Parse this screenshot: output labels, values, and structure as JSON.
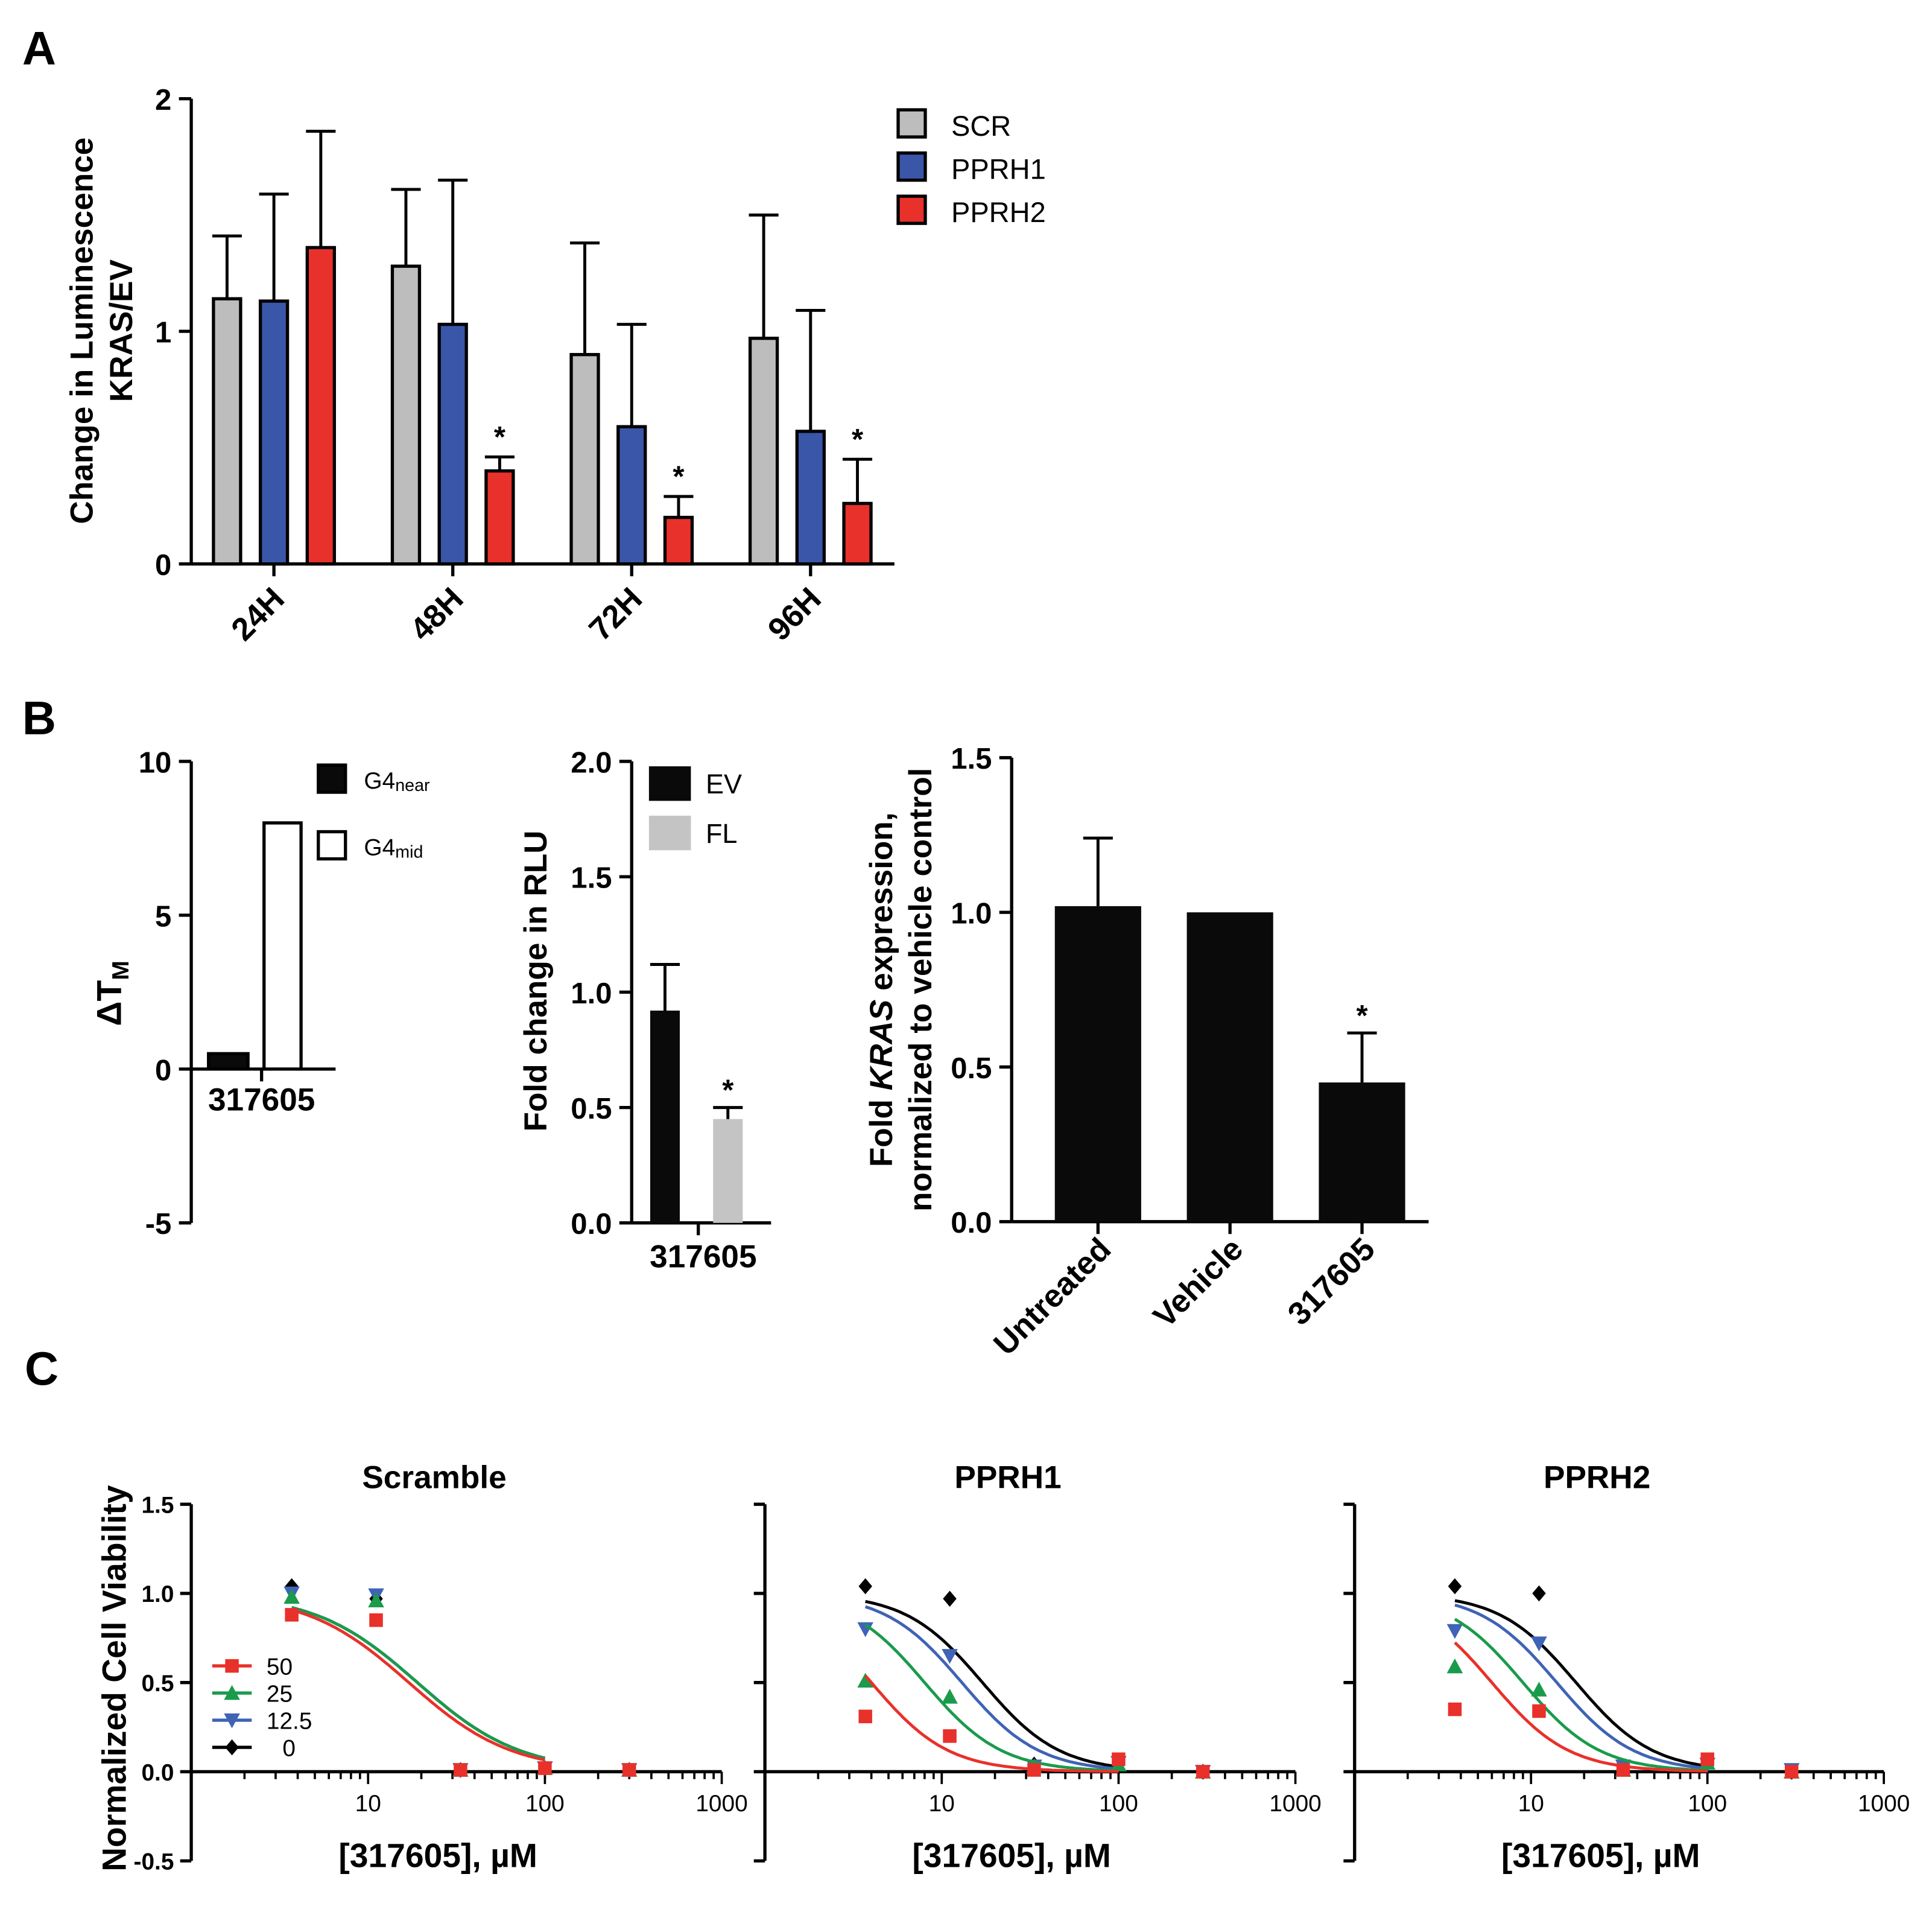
{
  "panels": {
    "a": "A",
    "b": "B",
    "c": "C"
  },
  "colors": {
    "scr": "#bdbdbd",
    "pprh1": "#3a56a8",
    "pprh2": "#e8312a",
    "black": "#0a0a0a",
    "fl": "#c4c4c4",
    "c50": "#e8312a",
    "c25": "#1a9b4b",
    "c12_5": "#3f63b5",
    "c0": "#000000"
  },
  "chart_data": [
    {
      "id": "A",
      "type": "bar",
      "ylabel_line1": "Change in Luminescence",
      "ylabel_line2": "KRAS/EV",
      "ylim": [
        0,
        2
      ],
      "yticks": [
        "0",
        "1",
        "2"
      ],
      "categories": [
        "24H",
        "48H",
        "72H",
        "96H"
      ],
      "series": [
        {
          "name": "SCR",
          "values": [
            1.14,
            1.28,
            0.9,
            0.97
          ],
          "errors": [
            0.27,
            0.33,
            0.48,
            0.53
          ],
          "sig": [
            "",
            "",
            "",
            ""
          ]
        },
        {
          "name": "PPRH1",
          "values": [
            1.13,
            1.03,
            0.59,
            0.57
          ],
          "errors": [
            0.46,
            0.62,
            0.44,
            0.52
          ],
          "sig": [
            "",
            "",
            "",
            ""
          ]
        },
        {
          "name": "PPRH2",
          "values": [
            1.36,
            0.4,
            0.2,
            0.26
          ],
          "errors": [
            0.5,
            0.06,
            0.09,
            0.19
          ],
          "sig": [
            "",
            "*",
            "*",
            "*"
          ]
        }
      ]
    },
    {
      "id": "B1",
      "type": "bar",
      "ylabel": "ΔT",
      "ylabel_sub": "M",
      "ylim": [
        -5,
        10
      ],
      "yticks": [
        "-5",
        "0",
        "5",
        "10"
      ],
      "categories": [
        "317605"
      ],
      "series": [
        {
          "name": "G4",
          "sub": "near",
          "values": [
            0.5
          ]
        },
        {
          "name": "G4",
          "sub": "mid",
          "values": [
            8.0
          ]
        }
      ]
    },
    {
      "id": "B2",
      "type": "bar",
      "ylabel": "Fold change in RLU",
      "ylim": [
        0,
        2
      ],
      "yticks": [
        "0.0",
        "0.5",
        "1.0",
        "1.5",
        "2.0"
      ],
      "categories": [
        "317605"
      ],
      "series": [
        {
          "name": "EV",
          "values": [
            0.92
          ],
          "errors": [
            0.2
          ],
          "sig": [
            ""
          ]
        },
        {
          "name": "FL",
          "values": [
            0.45
          ],
          "errors": [
            0.05
          ],
          "sig": [
            "*"
          ]
        }
      ]
    },
    {
      "id": "B3",
      "type": "bar",
      "ylabel_pre": "Fold ",
      "ylabel_italic": "KRAS",
      "ylabel_post": " expression,",
      "ylabel_line2": "normalized to vehicle control",
      "ylim": [
        0,
        1.5
      ],
      "yticks": [
        "0.0",
        "0.5",
        "1.0",
        "1.5"
      ],
      "categories": [
        "Untreated",
        "Vehicle",
        "317605"
      ],
      "values": [
        1.02,
        1.0,
        0.45
      ],
      "errors": [
        0.22,
        0,
        0.16
      ],
      "sig": [
        "",
        "",
        "*"
      ]
    },
    {
      "id": "C",
      "type": "scatter",
      "ylabel": "Normalized Cell Viability",
      "xlabel": "[317605], µM",
      "xscale": "log",
      "xlim": [
        1,
        1000
      ],
      "ylim": [
        -0.5,
        1.5
      ],
      "yticks": [
        "-0.5",
        "0.0",
        "0.5",
        "1.0",
        "1.5"
      ],
      "xticks": [
        "10",
        "100",
        "1000"
      ],
      "legend": [
        "50",
        "25",
        "12.5",
        "0"
      ],
      "x": [
        3.7,
        11.1,
        33.3,
        100,
        300
      ],
      "subplots": [
        {
          "title": "Scramble",
          "series": [
            {
              "name": "50",
              "y": [
                0.88,
                0.85,
                0.01,
                0.02,
                0.01
              ],
              "ic50": 17,
              "hill": 1.5
            },
            {
              "name": "25",
              "y": [
                0.98,
                0.96,
                0.01,
                0.02,
                0.01
              ],
              "ic50": 19,
              "hill": 1.5
            },
            {
              "name": "12.5",
              "y": [
                1.0,
                0.99,
                0.01,
                0.02,
                0.01
              ],
              "ic50": 19,
              "hill": 1.5
            },
            {
              "name": "0",
              "y": [
                1.04,
                0.97,
                0.01,
                0.02,
                0.01
              ],
              "ic50": 19,
              "hill": 1.5
            }
          ]
        },
        {
          "title": "PPRH1",
          "series": [
            {
              "name": "50",
              "y": [
                0.31,
                0.2,
                0.01,
                0.07,
                0.0
              ],
              "ic50": 4,
              "hill": 2.0
            },
            {
              "name": "25",
              "y": [
                0.51,
                0.42,
                0.03,
                0.04,
                0.0
              ],
              "ic50": 8,
              "hill": 2.0
            },
            {
              "name": "12.5",
              "y": [
                0.8,
                0.65,
                0.03,
                0.05,
                0.0
              ],
              "ic50": 13,
              "hill": 2.0
            },
            {
              "name": "0",
              "y": [
                1.04,
                0.97,
                0.04,
                0.05,
                0.0
              ],
              "ic50": 17,
              "hill": 2.0
            }
          ]
        },
        {
          "title": "PPRH2",
          "series": [
            {
              "name": "50",
              "y": [
                0.35,
                0.34,
                0.01,
                0.07,
                0.0
              ],
              "ic50": 6,
              "hill": 2.0
            },
            {
              "name": "25",
              "y": [
                0.59,
                0.46,
                0.01,
                0.05,
                0.0
              ],
              "ic50": 9,
              "hill": 2.0
            },
            {
              "name": "12.5",
              "y": [
                0.79,
                0.72,
                0.03,
                0.04,
                0.01
              ],
              "ic50": 14,
              "hill": 2.0
            },
            {
              "name": "0",
              "y": [
                1.04,
                1.0,
                0.03,
                0.05,
                0.0
              ],
              "ic50": 18,
              "hill": 2.0
            }
          ]
        }
      ]
    }
  ]
}
